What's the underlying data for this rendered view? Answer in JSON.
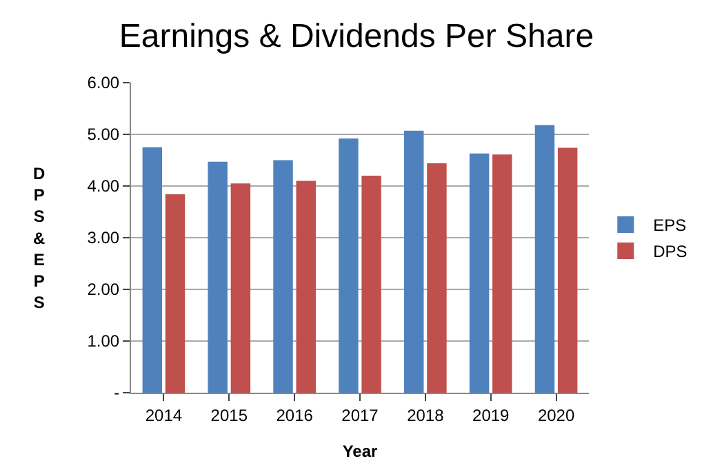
{
  "chart_data": {
    "type": "bar",
    "title": "Earnings & Dividends Per Share",
    "xlabel": "Year",
    "ylabel": "DPS & EPS",
    "categories": [
      "2014",
      "2015",
      "2016",
      "2017",
      "2018",
      "2019",
      "2020"
    ],
    "series": [
      {
        "name": "EPS",
        "color": "#4f81bd",
        "values": [
          4.75,
          4.47,
          4.5,
          4.92,
          5.07,
          4.63,
          5.18
        ]
      },
      {
        "name": "DPS",
        "color": "#c0504d",
        "values": [
          3.84,
          4.05,
          4.1,
          4.2,
          4.44,
          4.61,
          4.74
        ]
      }
    ],
    "ylim": [
      0,
      6
    ],
    "yticks": [
      {
        "value": 0,
        "label": "-"
      },
      {
        "value": 1,
        "label": "1.00"
      },
      {
        "value": 2,
        "label": "2.00"
      },
      {
        "value": 3,
        "label": "3.00"
      },
      {
        "value": 4,
        "label": "4.00"
      },
      {
        "value": 5,
        "label": "5.00"
      },
      {
        "value": 6,
        "label": "6.00"
      }
    ],
    "grid": "y",
    "legend": "right"
  }
}
